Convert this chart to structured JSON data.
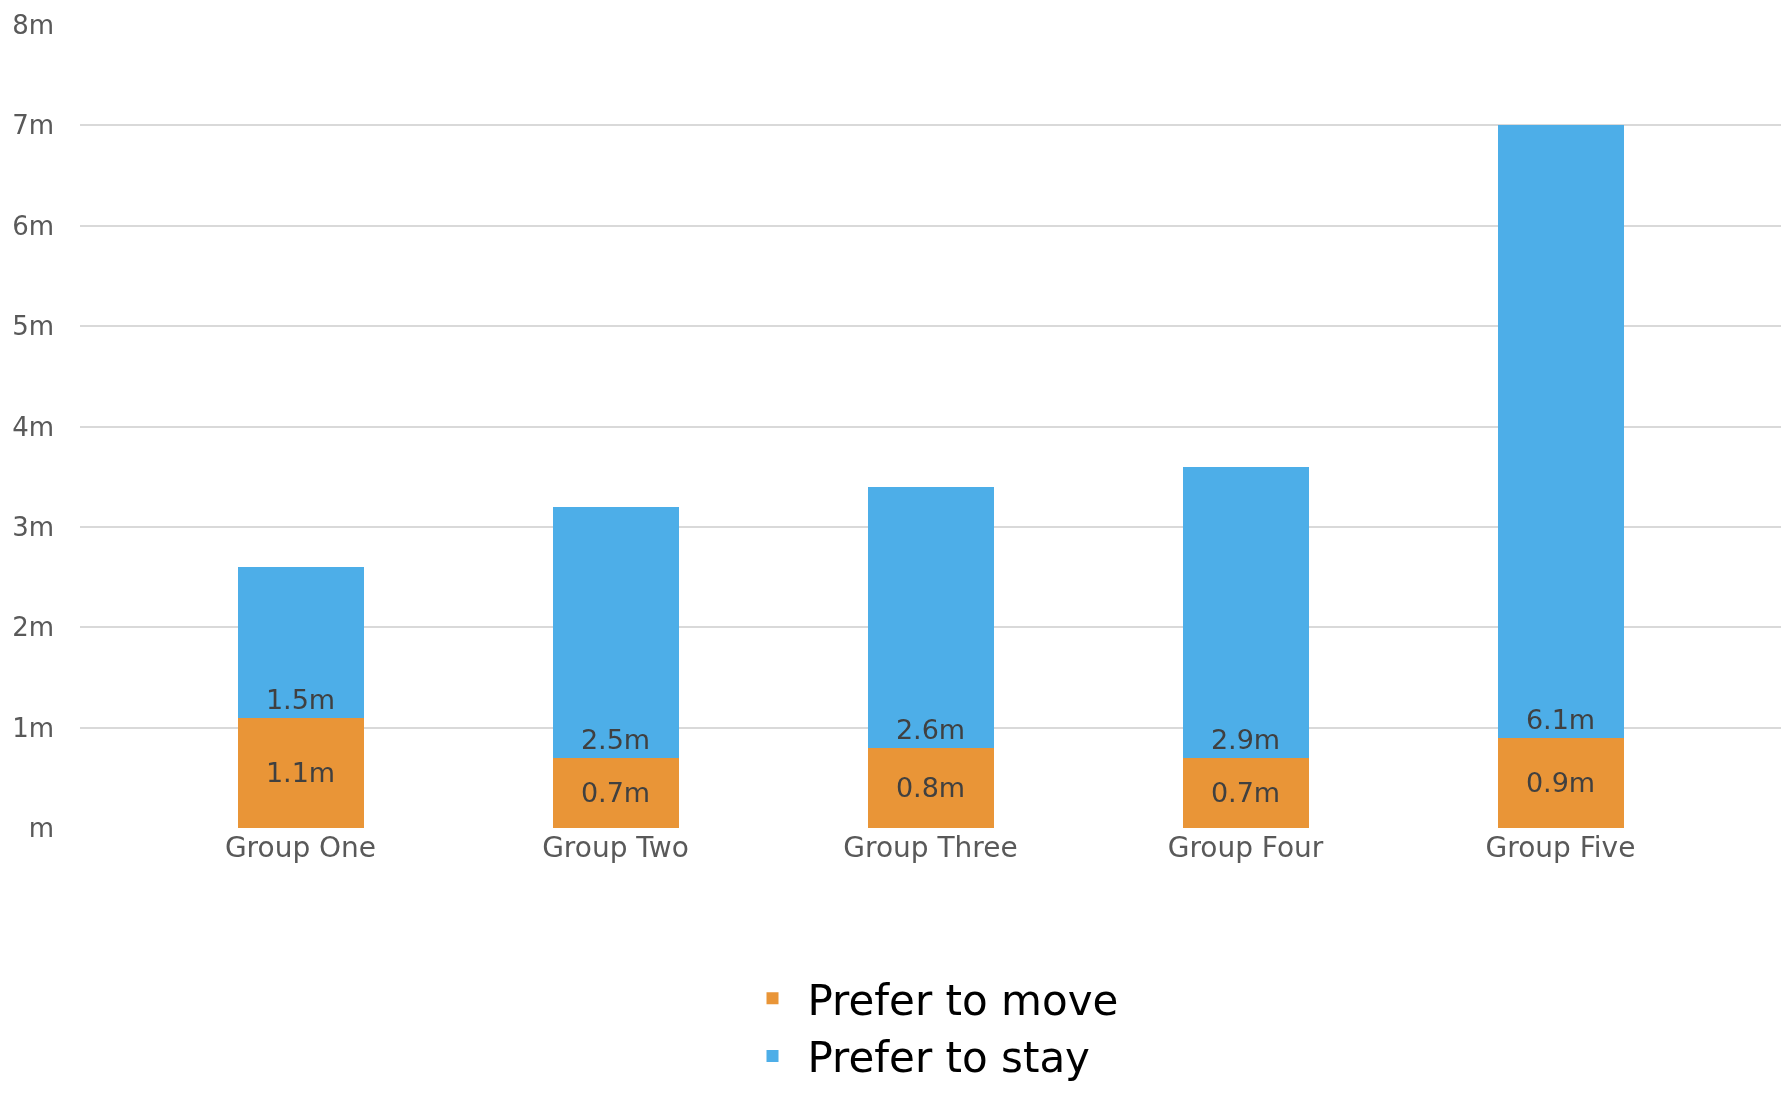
{
  "chart_data": {
    "type": "bar",
    "stacked": true,
    "categories": [
      "Group One",
      "Group Two",
      "Group Three",
      "Group Four",
      "Group Five"
    ],
    "series": [
      {
        "name": "Prefer to move",
        "color": "#e99537",
        "values": [
          1.1,
          0.7,
          0.8,
          0.7,
          0.9
        ],
        "value_labels": [
          "1.1m",
          "0.7m",
          "0.8m",
          "0.7m",
          "0.9m"
        ]
      },
      {
        "name": "Prefer to stay",
        "color": "#4daee8",
        "values": [
          1.5,
          2.5,
          2.6,
          2.9,
          6.1
        ],
        "value_labels": [
          "1.5m",
          "2.5m",
          "2.6m",
          "2.9m",
          "6.1m"
        ]
      }
    ],
    "ylim": [
      0,
      8
    ],
    "yticks": [
      {
        "value": 0,
        "label": "m"
      },
      {
        "value": 1,
        "label": "1m"
      },
      {
        "value": 2,
        "label": "2m"
      },
      {
        "value": 3,
        "label": "3m"
      },
      {
        "value": 4,
        "label": "4m"
      },
      {
        "value": 5,
        "label": "5m"
      },
      {
        "value": 6,
        "label": "6m"
      },
      {
        "value": 7,
        "label": "7m"
      },
      {
        "value": 8,
        "label": "8m"
      }
    ],
    "grid": "y",
    "legend": "bottom"
  }
}
